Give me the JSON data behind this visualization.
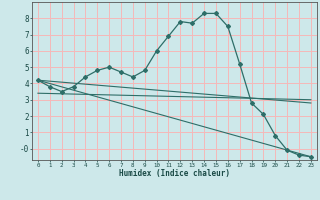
{
  "title": "",
  "xlabel": "Humidex (Indice chaleur)",
  "bg_color": "#cde8ea",
  "grid_color": "#f5b8b8",
  "line_color": "#2e6e68",
  "xlim": [
    -0.5,
    23.5
  ],
  "ylim": [
    -0.7,
    9.0
  ],
  "yticks": [
    0,
    1,
    2,
    3,
    4,
    5,
    6,
    7,
    8
  ],
  "ytick_labels": [
    "-0",
    "1",
    "2",
    "3",
    "4",
    "5",
    "6",
    "7",
    "8"
  ],
  "xtick_labels": [
    "0",
    "1",
    "2",
    "3",
    "4",
    "5",
    "6",
    "7",
    "8",
    "9",
    "10",
    "11",
    "12",
    "13",
    "14",
    "15",
    "16",
    "17",
    "18",
    "19",
    "20",
    "21",
    "22",
    "23"
  ],
  "series1_x": [
    0,
    1,
    2,
    3,
    4,
    5,
    6,
    7,
    8,
    9,
    10,
    11,
    12,
    13,
    14,
    15,
    16,
    17,
    18,
    19,
    20,
    21,
    22,
    23
  ],
  "series1_y": [
    4.2,
    3.8,
    3.5,
    3.8,
    4.4,
    4.8,
    5.0,
    4.7,
    4.4,
    4.8,
    6.0,
    6.9,
    7.8,
    7.7,
    8.3,
    8.3,
    7.5,
    5.2,
    2.8,
    2.1,
    0.8,
    -0.1,
    -0.4,
    -0.5
  ],
  "line2_x": [
    0,
    23
  ],
  "line2_y": [
    4.2,
    -0.5
  ],
  "line3_x": [
    0,
    23
  ],
  "line3_y": [
    3.4,
    3.0
  ],
  "line4_x": [
    0,
    23
  ],
  "line4_y": [
    4.2,
    2.8
  ]
}
